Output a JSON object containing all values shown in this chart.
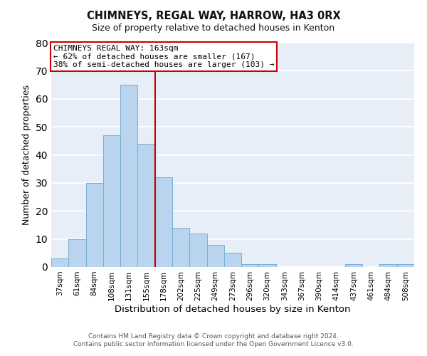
{
  "title": "CHIMNEYS, REGAL WAY, HARROW, HA3 0RX",
  "subtitle": "Size of property relative to detached houses in Kenton",
  "xlabel": "Distribution of detached houses by size in Kenton",
  "ylabel": "Number of detached properties",
  "bar_labels": [
    "37sqm",
    "61sqm",
    "84sqm",
    "108sqm",
    "131sqm",
    "155sqm",
    "178sqm",
    "202sqm",
    "225sqm",
    "249sqm",
    "273sqm",
    "296sqm",
    "320sqm",
    "343sqm",
    "367sqm",
    "390sqm",
    "414sqm",
    "437sqm",
    "461sqm",
    "484sqm",
    "508sqm"
  ],
  "bar_values": [
    3,
    10,
    30,
    47,
    65,
    44,
    32,
    14,
    12,
    8,
    5,
    1,
    1,
    0,
    0,
    0,
    0,
    1,
    0,
    1,
    1
  ],
  "bar_color": "#b8d4ee",
  "bar_edge_color": "#7aaed4",
  "ylim": [
    0,
    80
  ],
  "yticks": [
    0,
    10,
    20,
    30,
    40,
    50,
    60,
    70,
    80
  ],
  "vline_x": 5.5,
  "vline_color": "#cc0000",
  "annotation_title": "CHIMNEYS REGAL WAY: 163sqm",
  "annotation_line1": "← 62% of detached houses are smaller (167)",
  "annotation_line2": "38% of semi-detached houses are larger (103) →",
  "annotation_box_color": "#ffffff",
  "annotation_box_edge": "#cc0000",
  "footer1": "Contains HM Land Registry data © Crown copyright and database right 2024.",
  "footer2": "Contains public sector information licensed under the Open Government Licence v3.0.",
  "plot_bg_color": "#e8eef8",
  "fig_bg_color": "#ffffff",
  "grid_color": "#ffffff"
}
